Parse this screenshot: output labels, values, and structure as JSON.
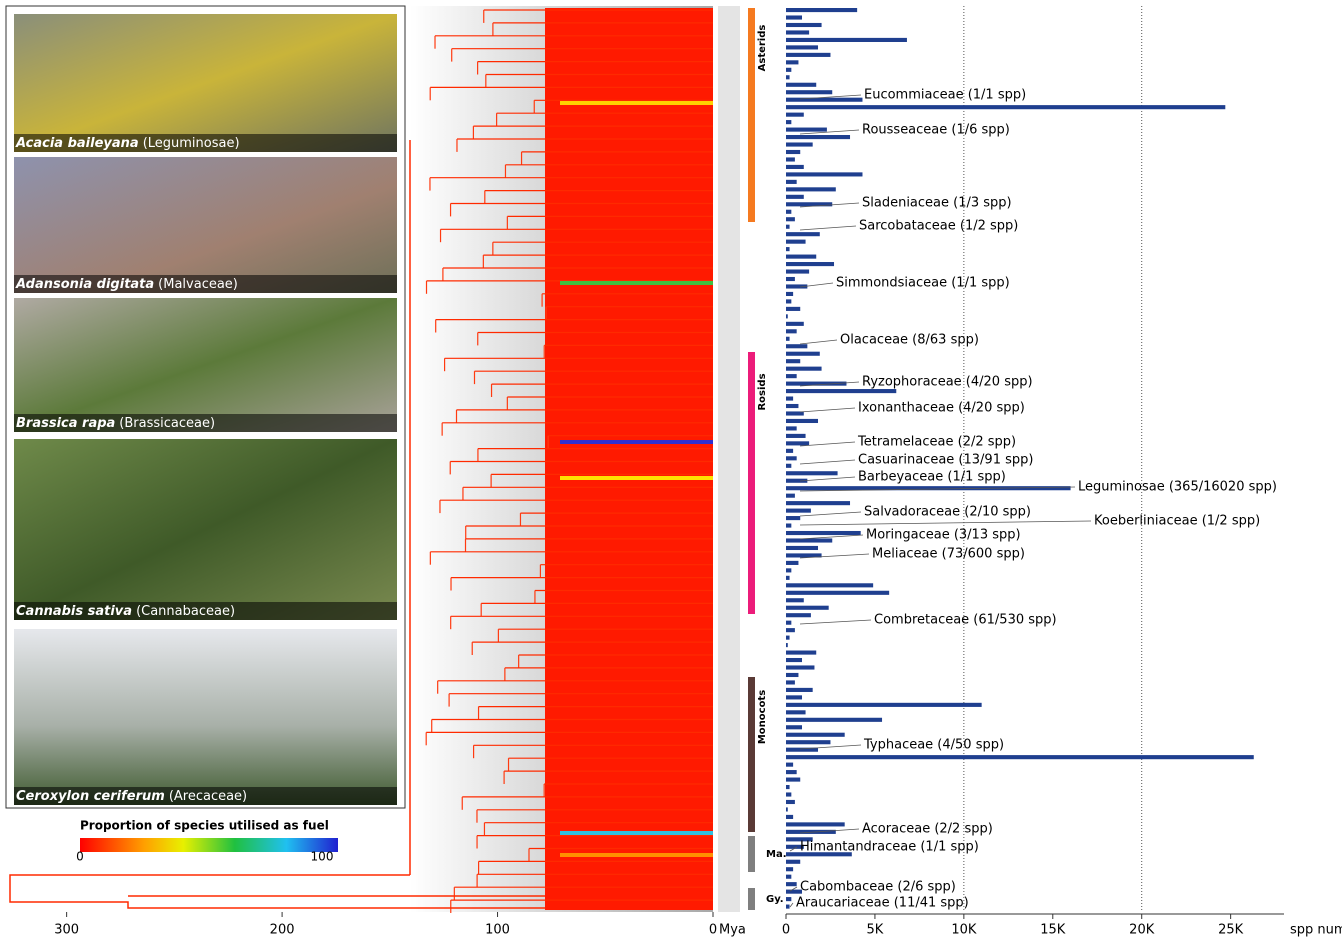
{
  "chart_data": {
    "type": "bar",
    "photos": [
      {
        "species": "Acacia baileyana",
        "family": "(Leguminosae)"
      },
      {
        "species": "Adansonia digitata",
        "family": "(Malvaceae)"
      },
      {
        "species": "Brassica rapa",
        "family": "(Brassicaceae)"
      },
      {
        "species": "Cannabis sativa",
        "family": "(Cannabaceae)"
      },
      {
        "species": "Ceroxylon ceriferum",
        "family": "(Arecaceae)"
      }
    ],
    "legend": {
      "title": "Proportion of species utilised as fuel",
      "min": 0,
      "max": 100
    },
    "tree_axis": {
      "xlim": [
        330,
        0
      ],
      "xticks": [
        300,
        200,
        100,
        0
      ],
      "label": "Mya"
    },
    "clades": [
      {
        "name": "Asterids",
        "color": "#f57a20"
      },
      {
        "name": "Rosids",
        "color": "#ec1c7a"
      },
      {
        "name": "Monocots",
        "color": "#5a3a36"
      },
      {
        "name": "Ma.",
        "color": "#7f7f7f"
      },
      {
        "name": "Gy.",
        "color": "#7f7f7f"
      }
    ],
    "color": "#1f3f8f",
    "values": [
      4000,
      900,
      2000,
      1300,
      6800,
      1800,
      2500,
      700,
      300,
      200,
      1700,
      2600,
      4300,
      24700,
      1000,
      300,
      2300,
      3600,
      1500,
      800,
      500,
      1000,
      4300,
      600,
      2800,
      1000,
      2600,
      300,
      500,
      200,
      1900,
      1100,
      200,
      1700,
      2700,
      1300,
      500,
      1200,
      400,
      300,
      800,
      100,
      1000,
      600,
      200,
      1200,
      1900,
      800,
      2000,
      600,
      3400,
      6200,
      400,
      700,
      1000,
      1800,
      600,
      1100,
      1300,
      400,
      600,
      300,
      2900,
      1200,
      16000,
      500,
      3600,
      1400,
      800,
      300,
      4200,
      2600,
      1800,
      2000,
      700,
      300,
      200,
      4900,
      5800,
      1000,
      2400,
      1400,
      300,
      500,
      200,
      100,
      1700,
      900,
      1600,
      700,
      500,
      1500,
      900,
      11000,
      1100,
      5400,
      900,
      3300,
      2500,
      1800,
      26300,
      400,
      600,
      800,
      200,
      300,
      500,
      100,
      400,
      3300,
      2800,
      1500,
      1000,
      3700,
      800,
      400,
      300,
      600,
      900,
      300,
      200
    ],
    "xlim": [
      0,
      28000
    ],
    "xticks": [
      0,
      {
        "value": 5000,
        "label": "5K"
      },
      {
        "value": 10000,
        "label": "10K"
      },
      {
        "value": 15000,
        "label": "15K"
      },
      {
        "value": 20000,
        "label": "20K"
      },
      {
        "value": 25000,
        "label": "25K"
      }
    ],
    "xlabel": "spp number",
    "grid_lines": [
      10000,
      20000
    ],
    "annotations": [
      "Eucommiaceae (1/1 spp)",
      "Rousseaceae (1/6 spp)",
      "Sladeniaceae (1/3 spp)",
      "Sarcobataceae (1/2 spp)",
      "Simmondsiaceae (1/1 spp)",
      "Olacaceae (8/63 spp)",
      "Ryzophoraceae (4/20 spp)",
      "Ixonanthaceae (4/20 spp)",
      "Tetramelaceae (2/2 spp)",
      "Casuarinaceae (13/91 spp)",
      "Barbeyaceae (1/1 spp)",
      "Leguminosae (365/16020 spp)",
      "Salvadoraceae (2/10 spp)",
      "Koeberliniaceae (1/2 spp)",
      "Moringaceae (3/13 spp)",
      "Meliaceae (73/600 spp)",
      "Combretaceae (61/530 spp)",
      "Typhaceae (4/50 spp)",
      "Acoraceae (2/2 spp)",
      "Himantandraceae (1/1 spp)",
      "Cabombaceae (2/6 spp)",
      "Araucariaceae (11/41 spp)"
    ]
  }
}
